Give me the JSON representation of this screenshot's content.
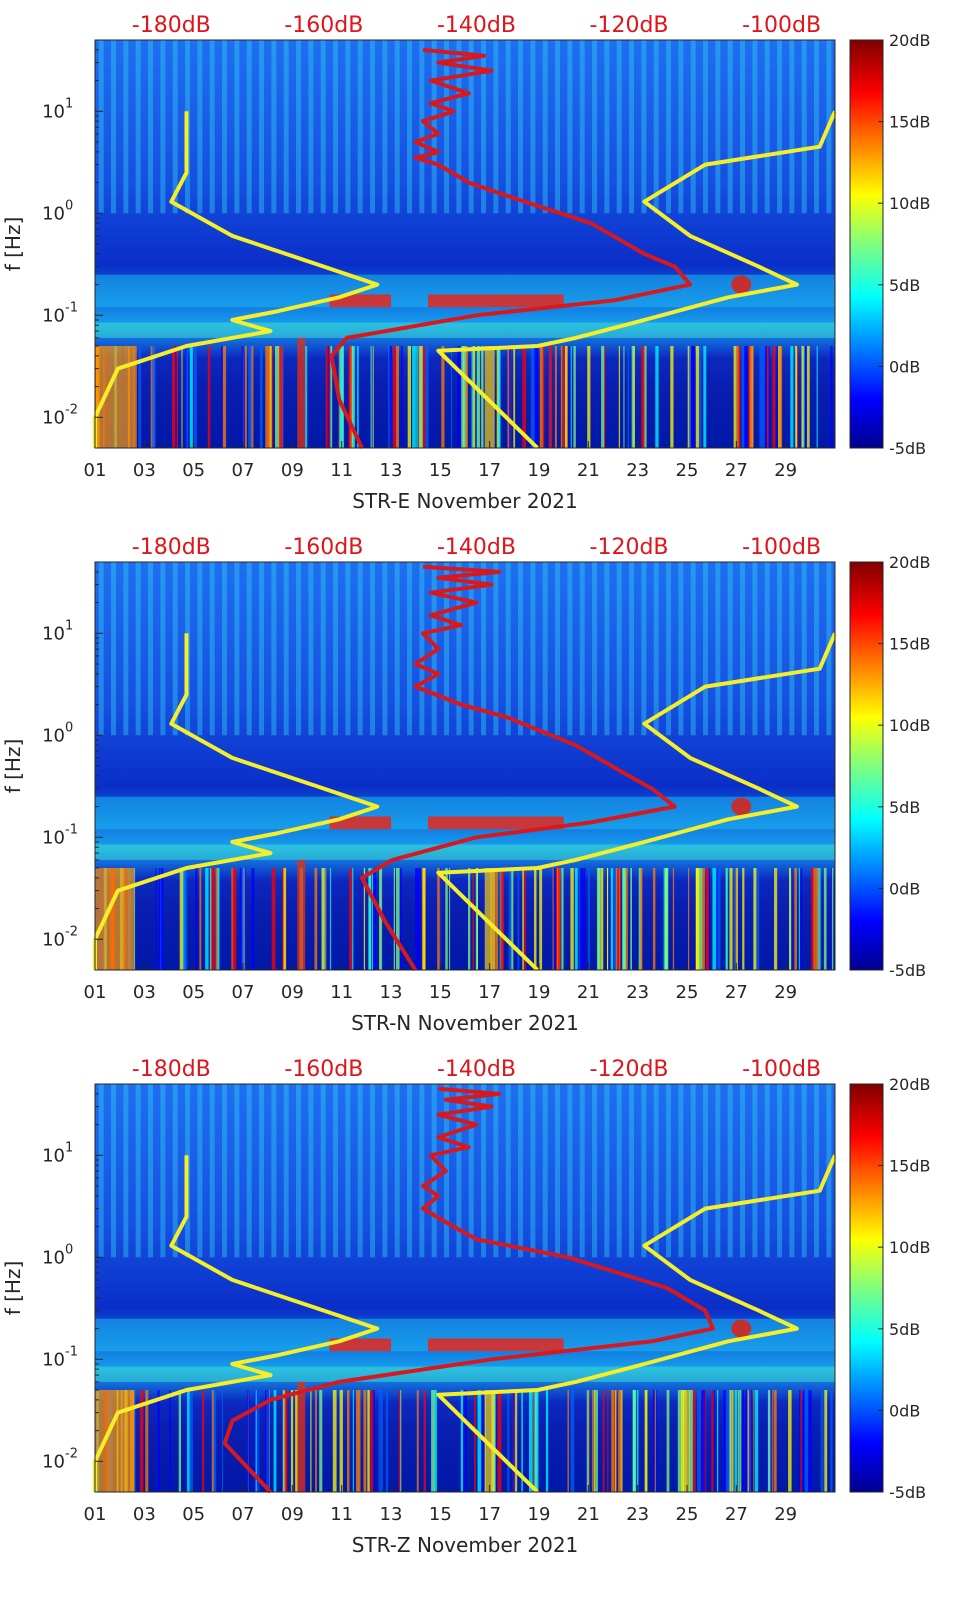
{
  "colors": {
    "noise_model_low": "#f5ee2a",
    "noise_model_high": "#f5ee2a",
    "median_psd": "#d6191f",
    "top_axis_text": "#e0141b"
  },
  "colormap": "jet",
  "chart_data": [
    {
      "type": "heatmap",
      "xlabel": "STR-E November 2021",
      "ylabel": "f [Hz]",
      "x_tick_labels": [
        "01",
        "03",
        "05",
        "07",
        "09",
        "11",
        "13",
        "15",
        "17",
        "19",
        "21",
        "23",
        "25",
        "27",
        "29"
      ],
      "y_tick_labels": [
        "10^-2",
        "10^-1",
        "10^0",
        "10^1"
      ],
      "y_scale": "log",
      "ylim": [
        0.005,
        50
      ],
      "xlim": [
        1,
        31
      ],
      "top_axis_labels": [
        "-180dB",
        "-160dB",
        "-140dB",
        "-120dB",
        "-100dB"
      ],
      "top_axis_range": [
        -190,
        -93
      ],
      "colorbar": {
        "labels": [
          "20dB",
          "15dB",
          "10dB",
          "5dB",
          "0dB",
          "-5dB"
        ],
        "range": [
          -5,
          20
        ]
      },
      "series": [
        {
          "id": "noise_model_low",
          "points": [
            [
              -178,
              10
            ],
            [
              -178,
              5
            ],
            [
              -178,
              2.5
            ],
            [
              -180,
              1.3
            ],
            [
              -172,
              0.6
            ],
            [
              -160,
              0.3
            ],
            [
              -153,
              0.2
            ],
            [
              -158,
              0.15
            ],
            [
              -166,
              0.11
            ],
            [
              -172,
              0.09
            ],
            [
              -167,
              0.07
            ],
            [
              -178,
              0.05
            ],
            [
              -187,
              0.03
            ],
            [
              -190,
              0.01
            ],
            [
              -190,
              0.005
            ]
          ]
        },
        {
          "id": "noise_model_high",
          "points": [
            [
              -93,
              10
            ],
            [
              -95,
              4.5
            ],
            [
              -110,
              3
            ],
            [
              -118,
              1.3
            ],
            [
              -112,
              0.6
            ],
            [
              -103,
              0.3
            ],
            [
              -98,
              0.2
            ],
            [
              -107,
              0.15
            ],
            [
              -118,
              0.09
            ],
            [
              -127,
              0.06
            ],
            [
              -132,
              0.05
            ],
            [
              -145,
              0.045
            ],
            [
              -132,
              0.005
            ]
          ]
        },
        {
          "id": "median_psd",
          "points": [
            [
              -147,
              40
            ],
            [
              -139,
              35
            ],
            [
              -145,
              30
            ],
            [
              -138,
              25
            ],
            [
              -146,
              20
            ],
            [
              -141,
              15
            ],
            [
              -146,
              12
            ],
            [
              -143,
              10
            ],
            [
              -147,
              8
            ],
            [
              -145,
              6
            ],
            [
              -148,
              5
            ],
            [
              -145,
              4
            ],
            [
              -148,
              3.5
            ],
            [
              -145,
              3
            ],
            [
              -141,
              2
            ],
            [
              -135,
              1.4
            ],
            [
              -125,
              0.8
            ],
            [
              -118,
              0.4
            ],
            [
              -114,
              0.3
            ],
            [
              -112,
              0.2
            ],
            [
              -122,
              0.14
            ],
            [
              -140,
              0.1
            ],
            [
              -157,
              0.06
            ],
            [
              -159,
              0.04
            ],
            [
              -158,
              0.015
            ],
            [
              -155,
              0.005
            ]
          ]
        }
      ]
    },
    {
      "type": "heatmap",
      "xlabel": "STR-N November 2021",
      "ylabel": "f [Hz]",
      "x_tick_labels": [
        "01",
        "03",
        "05",
        "07",
        "09",
        "11",
        "13",
        "15",
        "17",
        "19",
        "21",
        "23",
        "25",
        "27",
        "29"
      ],
      "y_tick_labels": [
        "10^-2",
        "10^-1",
        "10^0",
        "10^1"
      ],
      "y_scale": "log",
      "ylim": [
        0.005,
        50
      ],
      "xlim": [
        1,
        31
      ],
      "top_axis_labels": [
        "-180dB",
        "-160dB",
        "-140dB",
        "-120dB",
        "-100dB"
      ],
      "top_axis_range": [
        -190,
        -93
      ],
      "colorbar": {
        "labels": [
          "20dB",
          "15dB",
          "10dB",
          "5dB",
          "0dB",
          "-5dB"
        ],
        "range": [
          -5,
          20
        ]
      },
      "series": [
        {
          "id": "noise_model_low",
          "points": [
            [
              -178,
              10
            ],
            [
              -178,
              5
            ],
            [
              -178,
              2.5
            ],
            [
              -180,
              1.3
            ],
            [
              -172,
              0.6
            ],
            [
              -160,
              0.3
            ],
            [
              -153,
              0.2
            ],
            [
              -158,
              0.15
            ],
            [
              -166,
              0.11
            ],
            [
              -172,
              0.09
            ],
            [
              -167,
              0.07
            ],
            [
              -178,
              0.05
            ],
            [
              -187,
              0.03
            ],
            [
              -190,
              0.01
            ],
            [
              -190,
              0.005
            ]
          ]
        },
        {
          "id": "noise_model_high",
          "points": [
            [
              -93,
              10
            ],
            [
              -95,
              4.5
            ],
            [
              -110,
              3
            ],
            [
              -118,
              1.3
            ],
            [
              -112,
              0.6
            ],
            [
              -103,
              0.3
            ],
            [
              -98,
              0.2
            ],
            [
              -107,
              0.15
            ],
            [
              -118,
              0.09
            ],
            [
              -127,
              0.06
            ],
            [
              -132,
              0.05
            ],
            [
              -145,
              0.045
            ],
            [
              -132,
              0.005
            ]
          ]
        },
        {
          "id": "median_psd",
          "points": [
            [
              -147,
              45
            ],
            [
              -137,
              40
            ],
            [
              -145,
              35
            ],
            [
              -138,
              30
            ],
            [
              -146,
              25
            ],
            [
              -140,
              20
            ],
            [
              -146,
              15
            ],
            [
              -142,
              12
            ],
            [
              -147,
              10
            ],
            [
              -145,
              7
            ],
            [
              -148,
              5
            ],
            [
              -145,
              4
            ],
            [
              -148,
              3
            ],
            [
              -142,
              2
            ],
            [
              -136,
              1.5
            ],
            [
              -127,
              0.8
            ],
            [
              -120,
              0.4
            ],
            [
              -117,
              0.3
            ],
            [
              -114,
              0.2
            ],
            [
              -125,
              0.14
            ],
            [
              -140,
              0.1
            ],
            [
              -151,
              0.06
            ],
            [
              -155,
              0.04
            ],
            [
              -152,
              0.015
            ],
            [
              -148,
              0.005
            ]
          ]
        }
      ]
    },
    {
      "type": "heatmap",
      "xlabel": "STR-Z November 2021",
      "ylabel": "f [Hz]",
      "x_tick_labels": [
        "01",
        "03",
        "05",
        "07",
        "09",
        "11",
        "13",
        "15",
        "17",
        "19",
        "21",
        "23",
        "25",
        "27",
        "29"
      ],
      "y_tick_labels": [
        "10^-2",
        "10^-1",
        "10^0",
        "10^1"
      ],
      "y_scale": "log",
      "ylim": [
        0.005,
        50
      ],
      "xlim": [
        1,
        31
      ],
      "top_axis_labels": [
        "-180dB",
        "-160dB",
        "-140dB",
        "-120dB",
        "-100dB"
      ],
      "top_axis_range": [
        -190,
        -93
      ],
      "colorbar": {
        "labels": [
          "20dB",
          "15dB",
          "10dB",
          "5dB",
          "0dB",
          "-5dB"
        ],
        "range": [
          -5,
          20
        ]
      },
      "series": [
        {
          "id": "noise_model_low",
          "points": [
            [
              -178,
              10
            ],
            [
              -178,
              5
            ],
            [
              -178,
              2.5
            ],
            [
              -180,
              1.3
            ],
            [
              -172,
              0.6
            ],
            [
              -160,
              0.3
            ],
            [
              -153,
              0.2
            ],
            [
              -158,
              0.15
            ],
            [
              -166,
              0.11
            ],
            [
              -172,
              0.09
            ],
            [
              -167,
              0.07
            ],
            [
              -178,
              0.05
            ],
            [
              -187,
              0.03
            ],
            [
              -190,
              0.01
            ],
            [
              -190,
              0.005
            ]
          ]
        },
        {
          "id": "noise_model_high",
          "points": [
            [
              -93,
              10
            ],
            [
              -95,
              4.5
            ],
            [
              -110,
              3
            ],
            [
              -118,
              1.3
            ],
            [
              -112,
              0.6
            ],
            [
              -103,
              0.3
            ],
            [
              -98,
              0.2
            ],
            [
              -107,
              0.15
            ],
            [
              -118,
              0.09
            ],
            [
              -127,
              0.06
            ],
            [
              -132,
              0.05
            ],
            [
              -145,
              0.045
            ],
            [
              -132,
              0.005
            ]
          ]
        },
        {
          "id": "median_psd",
          "points": [
            [
              -145,
              45
            ],
            [
              -137,
              40
            ],
            [
              -144,
              35
            ],
            [
              -138,
              30
            ],
            [
              -145,
              25
            ],
            [
              -140,
              20
            ],
            [
              -145,
              15
            ],
            [
              -141,
              12
            ],
            [
              -146,
              10
            ],
            [
              -144,
              7
            ],
            [
              -147,
              5
            ],
            [
              -145,
              4
            ],
            [
              -147,
              3
            ],
            [
              -143,
              2
            ],
            [
              -140,
              1.5
            ],
            [
              -128,
              1
            ],
            [
              -115,
              0.5
            ],
            [
              -110,
              0.3
            ],
            [
              -109,
              0.2
            ],
            [
              -117,
              0.15
            ],
            [
              -138,
              0.1
            ],
            [
              -158,
              0.06
            ],
            [
              -167,
              0.04
            ],
            [
              -172,
              0.025
            ],
            [
              -173,
              0.015
            ],
            [
              -167,
              0.005
            ]
          ]
        }
      ]
    }
  ]
}
